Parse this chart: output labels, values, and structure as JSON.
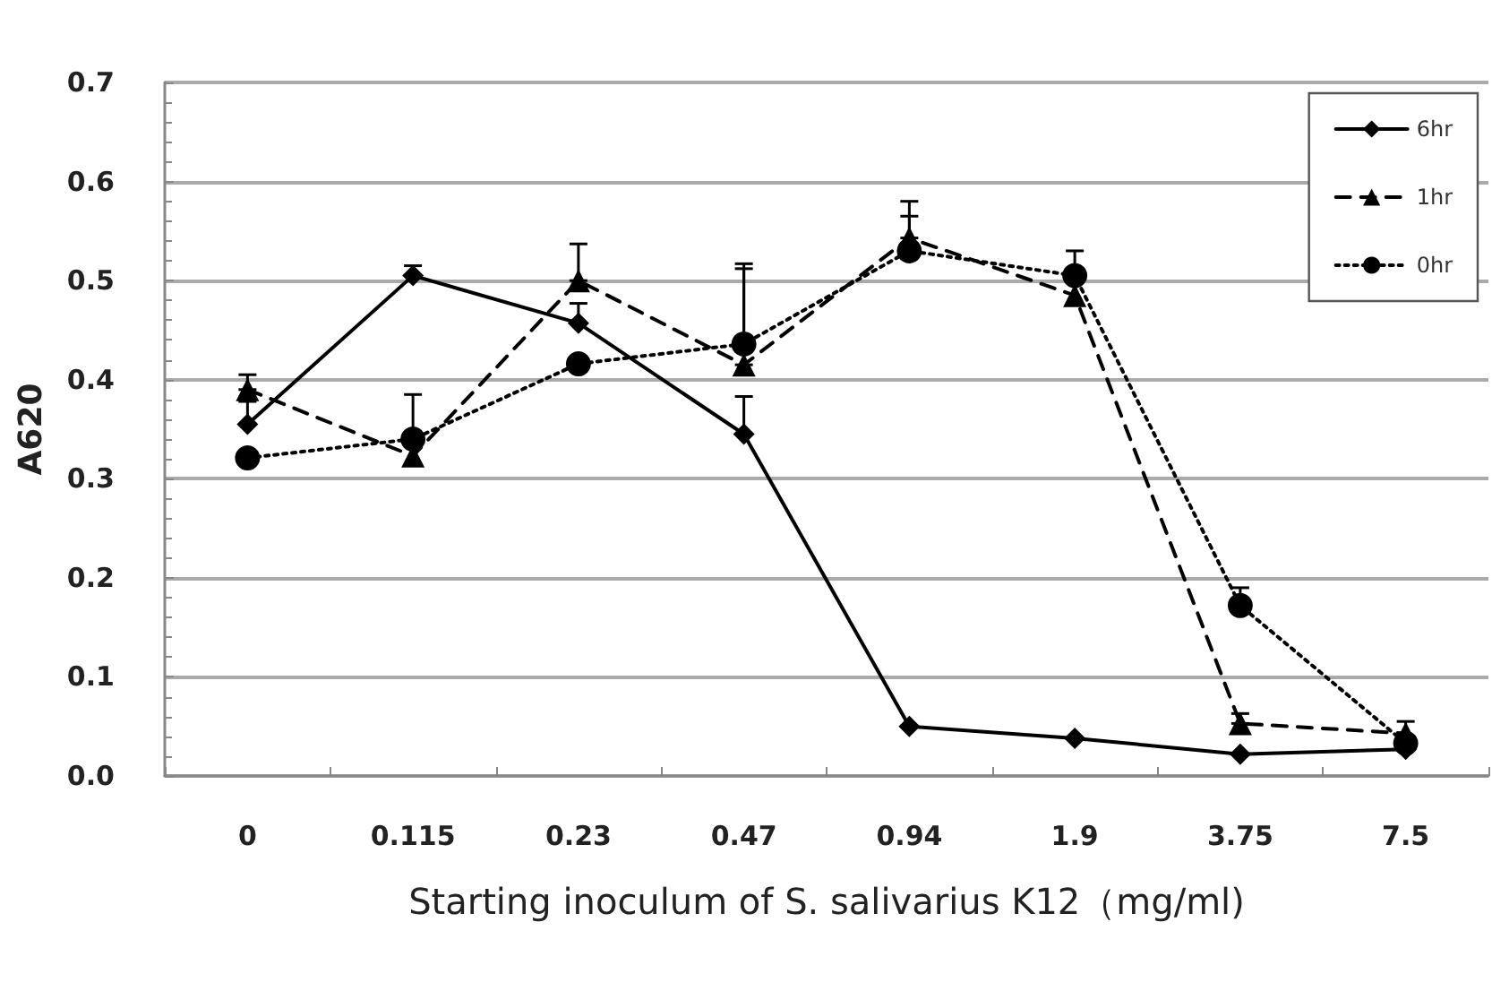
{
  "chart_data": {
    "type": "line",
    "xlabel": "Starting inoculum of S. salivarius K12（mg/ml)",
    "ylabel": "A620",
    "categories": [
      "0",
      "0.115",
      "0.23",
      "0.47",
      "0.94",
      "1.9",
      "3.75",
      "7.5"
    ],
    "series": [
      {
        "name": "6hr",
        "color": "#000000",
        "marker": "diamond",
        "line_style": "solid",
        "values": [
          0.355,
          0.505,
          0.457,
          0.345,
          0.05,
          0.038,
          0.022,
          0.027
        ],
        "errors": [
          [
            0.355,
            0.378
          ],
          [
            0.505,
            0.515
          ],
          [
            0.457,
            0.477
          ],
          [
            0.345,
            0.383
          ],
          null,
          null,
          null,
          null
        ]
      },
      {
        "name": "1hr",
        "color": "#000000",
        "marker": "triangle",
        "line_style": "dashed",
        "values": [
          0.39,
          0.323,
          0.5,
          0.415,
          0.543,
          0.485,
          0.053,
          0.043
        ],
        "errors": [
          [
            0.39,
            0.405
          ],
          null,
          [
            0.5,
            0.537
          ],
          [
            0.415,
            0.512
          ],
          [
            0.543,
            0.565
          ],
          null,
          [
            0.053,
            0.063
          ],
          null
        ]
      },
      {
        "name": "0hr",
        "color": "#000000",
        "marker": "circle",
        "line_style": "dotted",
        "values": [
          0.321,
          0.34,
          0.416,
          0.436,
          0.53,
          0.505,
          0.172,
          0.033
        ],
        "errors": [
          null,
          [
            0.34,
            0.385
          ],
          null,
          [
            0.436,
            0.517
          ],
          [
            0.53,
            0.58
          ],
          [
            0.505,
            0.53
          ],
          [
            0.172,
            0.19
          ],
          [
            0.033,
            0.055
          ]
        ]
      }
    ],
    "ylim": [
      0,
      0.7
    ],
    "yticks": [
      {
        "value": 0,
        "label": "0.0"
      },
      {
        "value": 0.1,
        "label": "0.1"
      },
      {
        "value": 0.2,
        "label": "0.2"
      },
      {
        "value": 0.3,
        "label": "0.3"
      },
      {
        "value": 0.4,
        "label": "0.4"
      },
      {
        "value": 0.5,
        "label": "0.5"
      },
      {
        "value": 0.6,
        "label": "0.6"
      },
      {
        "value": 0.7,
        "label": "0.7"
      }
    ],
    "grid": "y",
    "legend": "top right"
  }
}
